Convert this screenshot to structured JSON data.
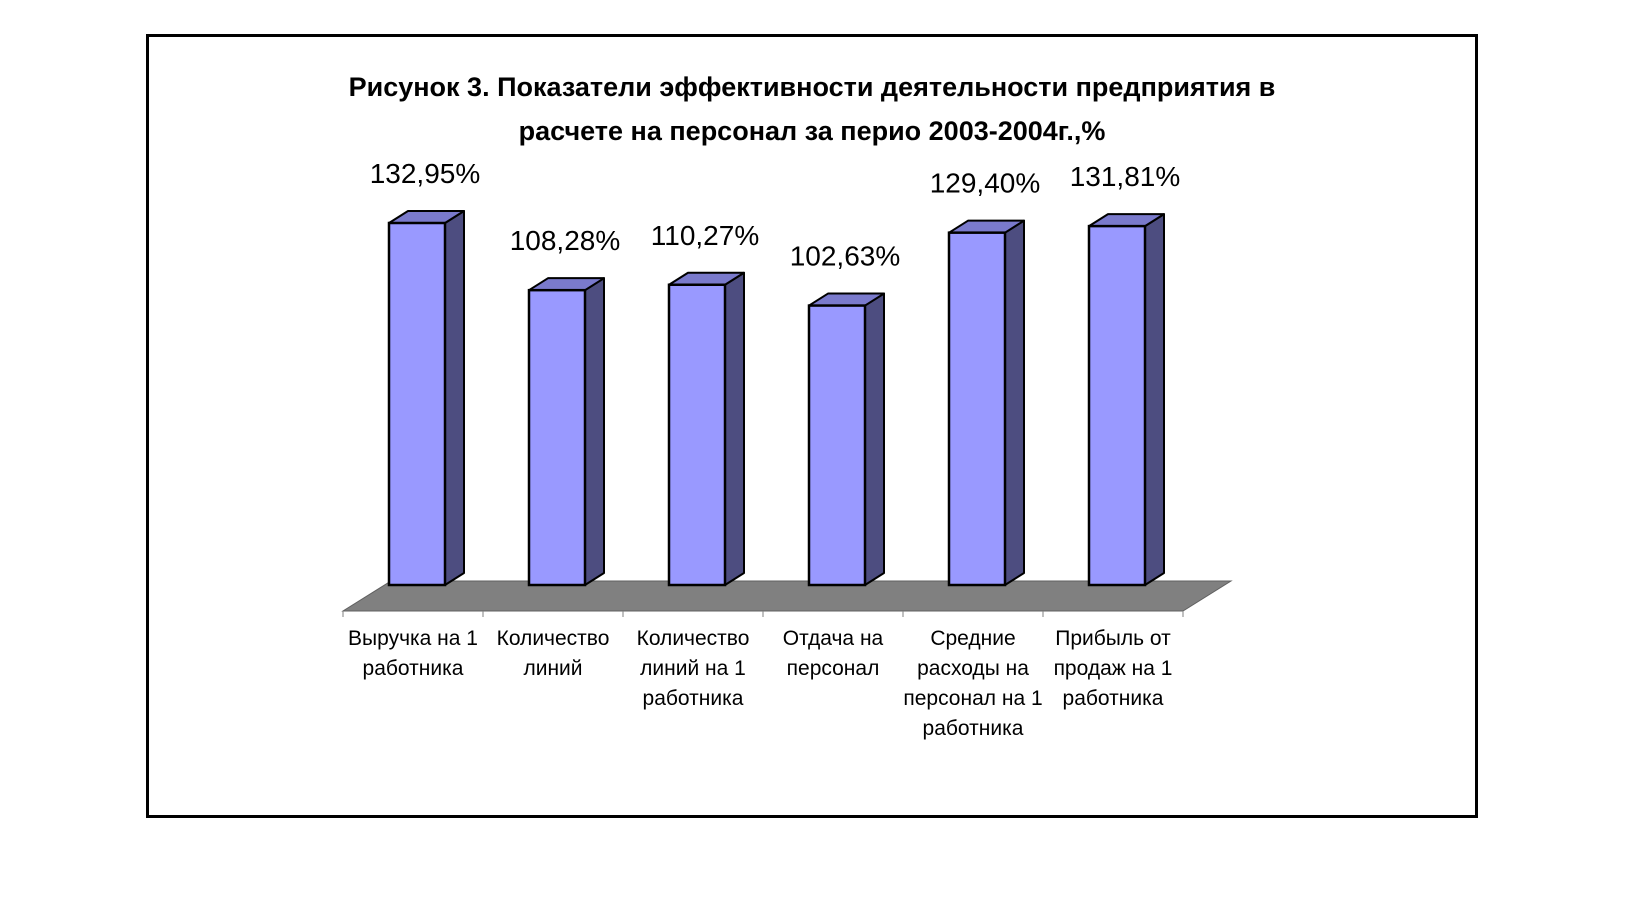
{
  "chart_data": {
    "type": "bar",
    "title_lines": [
      "Рисунок 3. Показатели эффективности деятельности предприятия в",
      "расчете на персонал за перио 2003-2004г.,%"
    ],
    "categories": [
      [
        "Выручка на 1",
        "работника"
      ],
      [
        "Количество",
        "линий"
      ],
      [
        "Количество",
        "линий на 1",
        "работника"
      ],
      [
        "Отдача на",
        "персонал"
      ],
      [
        "Средние",
        "расходы на",
        "персонал на 1",
        "работника"
      ],
      [
        "Прибыль от",
        "продаж на 1",
        "работника"
      ]
    ],
    "values": [
      132.95,
      108.28,
      110.27,
      102.63,
      129.4,
      131.81
    ],
    "data_labels": [
      "132,95%",
      "108,28%",
      "110,27%",
      "102,63%",
      "129,40%",
      "131,81%"
    ],
    "xlabel": "",
    "ylabel": "",
    "grid": false,
    "legend": "none",
    "style": "3d-column",
    "colors": {
      "bar_front": "#9999ff",
      "bar_side": "#4d4d80",
      "bar_top": "#7a7acc",
      "floor": "#808080",
      "outline": "#000000"
    }
  }
}
